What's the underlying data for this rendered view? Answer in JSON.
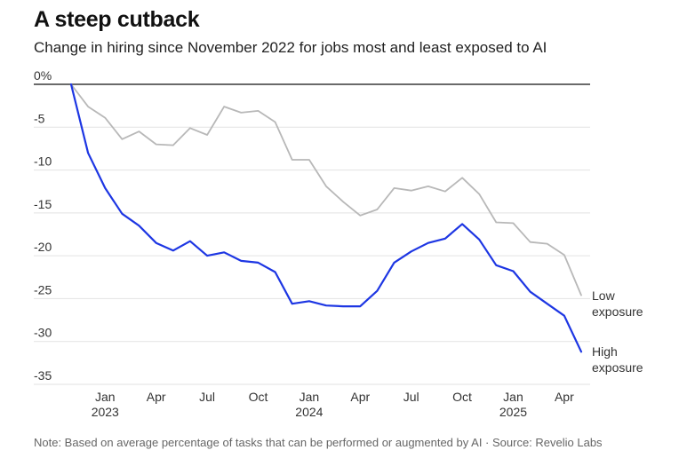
{
  "chart_data": {
    "type": "line",
    "title": "A steep cutback",
    "subtitle": "Change in hiring since November 2022 for jobs most and least exposed to AI",
    "note": "Note: Based on average percentage of tasks that can be performed or augmented by AI · Source: Revelio Labs",
    "xlabel": "",
    "ylabel": "",
    "ylim": [
      -35,
      0
    ],
    "yticks": [
      {
        "value": 0,
        "label": "0%"
      },
      {
        "value": -5,
        "label": "-5"
      },
      {
        "value": -10,
        "label": "-10"
      },
      {
        "value": -15,
        "label": "-15"
      },
      {
        "value": -20,
        "label": "-20"
      },
      {
        "value": -25,
        "label": "-25"
      },
      {
        "value": -30,
        "label": "-30"
      },
      {
        "value": -35,
        "label": "-35"
      }
    ],
    "x": [
      "2022-11",
      "2022-12",
      "2023-01",
      "2023-02",
      "2023-03",
      "2023-04",
      "2023-05",
      "2023-06",
      "2023-07",
      "2023-08",
      "2023-09",
      "2023-10",
      "2023-11",
      "2023-12",
      "2024-01",
      "2024-02",
      "2024-03",
      "2024-04",
      "2024-05",
      "2024-06",
      "2024-07",
      "2024-08",
      "2024-09",
      "2024-10",
      "2024-11",
      "2024-12",
      "2025-01",
      "2025-02",
      "2025-03",
      "2025-04",
      "2025-05"
    ],
    "xticks": [
      {
        "index": 2,
        "label": "Jan",
        "year": "2023"
      },
      {
        "index": 5,
        "label": "Apr",
        "year": ""
      },
      {
        "index": 8,
        "label": "Jul",
        "year": ""
      },
      {
        "index": 11,
        "label": "Oct",
        "year": ""
      },
      {
        "index": 14,
        "label": "Jan",
        "year": "2024"
      },
      {
        "index": 17,
        "label": "Apr",
        "year": ""
      },
      {
        "index": 20,
        "label": "Jul",
        "year": ""
      },
      {
        "index": 23,
        "label": "Oct",
        "year": ""
      },
      {
        "index": 26,
        "label": "Jan",
        "year": "2025"
      },
      {
        "index": 29,
        "label": "Apr",
        "year": ""
      }
    ],
    "series": [
      {
        "name": "Low exposure",
        "label_lines": [
          "Low",
          "exposure"
        ],
        "color": "#b8b8b8",
        "values": [
          0,
          -2.6,
          -3.9,
          -6.4,
          -5.5,
          -7.0,
          -7.1,
          -5.1,
          -5.9,
          -2.6,
          -3.3,
          -3.1,
          -4.4,
          -8.8,
          -8.8,
          -11.9,
          -13.7,
          -15.3,
          -14.6,
          -12.1,
          -12.4,
          -11.9,
          -12.5,
          -10.9,
          -12.8,
          -16.1,
          -16.2,
          -18.4,
          -18.6,
          -19.9,
          -24.6
        ]
      },
      {
        "name": "High exposure",
        "label_lines": [
          "High",
          "exposure"
        ],
        "color": "#1d36e3",
        "values": [
          0,
          -8.0,
          -12.1,
          -15.1,
          -16.5,
          -18.5,
          -19.4,
          -18.3,
          -20.0,
          -19.6,
          -20.6,
          -20.8,
          -21.9,
          -25.6,
          -25.3,
          -25.8,
          -25.9,
          -25.9,
          -24.1,
          -20.8,
          -19.5,
          -18.5,
          -18.0,
          -16.3,
          -18.1,
          -21.1,
          -21.8,
          -24.2,
          -25.6,
          -27.0,
          -31.2
        ]
      }
    ]
  }
}
